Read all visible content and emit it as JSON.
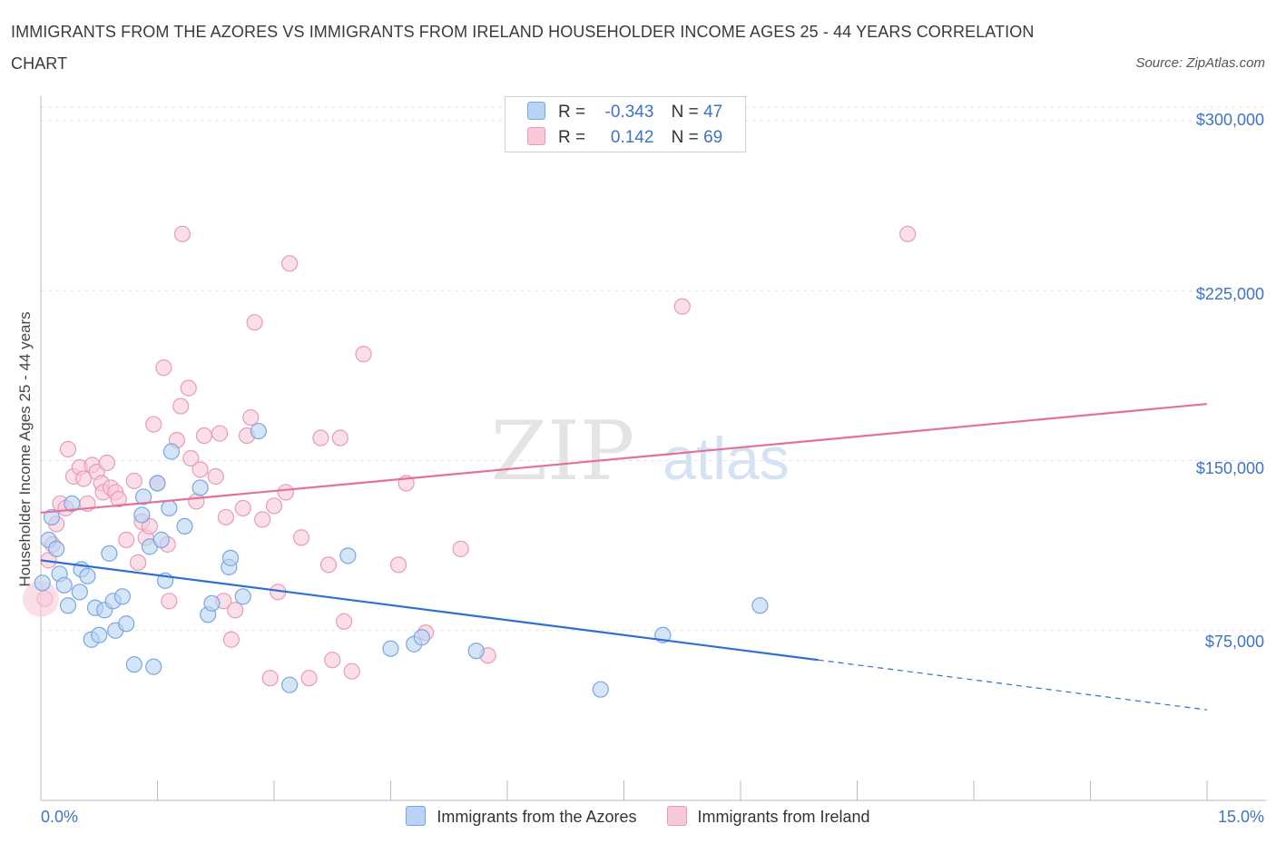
{
  "chart_data": {
    "type": "scatter",
    "title": "IMMIGRANTS FROM THE AZORES VS IMMIGRANTS FROM IRELAND HOUSEHOLDER INCOME AGES 25 - 44 YEARS CORRELATION CHART",
    "source": "Source: ZipAtlas.com",
    "xlabel": "",
    "ylabel": "Householder Income Ages 25 - 44 years",
    "xlim": [
      0,
      15
    ],
    "ylim": [
      0,
      300000
    ],
    "x_tick_labels": [
      "0.0%",
      "15.0%"
    ],
    "y_ticks": [
      75000,
      150000,
      225000,
      300000
    ],
    "y_tick_labels": [
      "$75,000",
      "$150,000",
      "$225,000",
      "$300,000"
    ],
    "grid": true,
    "watermark": "ZIPatlas",
    "legend": {
      "azores": {
        "r_label": "R =",
        "r_value": "-0.343",
        "n_label": "N =",
        "n_value": "47"
      },
      "ireland": {
        "r_label": "R =",
        "r_value": "0.142",
        "n_label": "N =",
        "n_value": "69"
      }
    },
    "colors": {
      "azores_fill": "#b9d3f4",
      "azores_stroke": "#7aa6e0",
      "azores_line": "#2f6fd1",
      "ireland_fill": "#f8c9d8",
      "ireland_stroke": "#ea9ab6",
      "ireland_line": "#e2729b",
      "axis_text": "#3f73c5"
    },
    "series": [
      {
        "name": "Immigrants from the Azores",
        "trend": {
          "x": [
            0,
            10.0
          ],
          "y": [
            106000,
            62000
          ],
          "dashed_to": [
            15,
            40000
          ]
        },
        "points": [
          [
            0.02,
            96000
          ],
          [
            0.1,
            115000
          ],
          [
            0.14,
            125000
          ],
          [
            0.2,
            111000
          ],
          [
            0.24,
            100000
          ],
          [
            0.3,
            95000
          ],
          [
            0.35,
            86000
          ],
          [
            0.4,
            131000
          ],
          [
            0.5,
            92000
          ],
          [
            0.52,
            102000
          ],
          [
            0.6,
            99000
          ],
          [
            0.65,
            71000
          ],
          [
            0.7,
            85000
          ],
          [
            0.75,
            73000
          ],
          [
            0.82,
            84000
          ],
          [
            0.88,
            109000
          ],
          [
            0.93,
            88000
          ],
          [
            0.96,
            75000
          ],
          [
            1.05,
            90000
          ],
          [
            1.1,
            78000
          ],
          [
            1.2,
            60000
          ],
          [
            1.3,
            126000
          ],
          [
            1.32,
            134000
          ],
          [
            1.4,
            112000
          ],
          [
            1.45,
            59000
          ],
          [
            1.5,
            140000
          ],
          [
            1.55,
            115000
          ],
          [
            1.6,
            97000
          ],
          [
            1.65,
            129000
          ],
          [
            1.68,
            154000
          ],
          [
            1.85,
            121000
          ],
          [
            2.05,
            138000
          ],
          [
            2.15,
            82000
          ],
          [
            2.2,
            87000
          ],
          [
            2.42,
            103000
          ],
          [
            2.44,
            107000
          ],
          [
            2.6,
            90000
          ],
          [
            2.8,
            163000
          ],
          [
            3.2,
            51000
          ],
          [
            3.95,
            108000
          ],
          [
            4.5,
            67000
          ],
          [
            4.8,
            69000
          ],
          [
            4.9,
            72000
          ],
          [
            5.6,
            66000
          ],
          [
            7.2,
            49000
          ],
          [
            8.0,
            73000
          ],
          [
            9.25,
            86000
          ]
        ]
      },
      {
        "name": "Immigrants from Ireland",
        "trend": {
          "x": [
            0,
            15
          ],
          "y": [
            127000,
            175000
          ]
        },
        "points": [
          [
            0.05,
            89000
          ],
          [
            0.1,
            106000
          ],
          [
            0.15,
            113000
          ],
          [
            0.2,
            122000
          ],
          [
            0.25,
            131000
          ],
          [
            0.32,
            129000
          ],
          [
            0.35,
            155000
          ],
          [
            0.42,
            143000
          ],
          [
            0.5,
            147000
          ],
          [
            0.55,
            142000
          ],
          [
            0.6,
            131000
          ],
          [
            0.66,
            148000
          ],
          [
            0.72,
            145000
          ],
          [
            0.78,
            140000
          ],
          [
            0.8,
            136000
          ],
          [
            0.85,
            149000
          ],
          [
            0.9,
            138000
          ],
          [
            0.96,
            136000
          ],
          [
            1.0,
            133000
          ],
          [
            1.1,
            115000
          ],
          [
            1.2,
            141000
          ],
          [
            1.25,
            105000
          ],
          [
            1.3,
            123000
          ],
          [
            1.35,
            116000
          ],
          [
            1.4,
            121000
          ],
          [
            1.45,
            166000
          ],
          [
            1.5,
            140000
          ],
          [
            1.58,
            191000
          ],
          [
            1.63,
            113000
          ],
          [
            1.65,
            88000
          ],
          [
            1.75,
            159000
          ],
          [
            1.8,
            174000
          ],
          [
            1.82,
            250000
          ],
          [
            1.9,
            182000
          ],
          [
            1.93,
            151000
          ],
          [
            2.0,
            132000
          ],
          [
            2.05,
            146000
          ],
          [
            2.1,
            161000
          ],
          [
            2.25,
            143000
          ],
          [
            2.3,
            162000
          ],
          [
            2.35,
            88000
          ],
          [
            2.38,
            125000
          ],
          [
            2.45,
            71000
          ],
          [
            2.5,
            84000
          ],
          [
            2.6,
            129000
          ],
          [
            2.65,
            161000
          ],
          [
            2.7,
            169000
          ],
          [
            2.75,
            211000
          ],
          [
            2.85,
            124000
          ],
          [
            2.95,
            54000
          ],
          [
            3.0,
            130000
          ],
          [
            3.05,
            92000
          ],
          [
            3.15,
            136000
          ],
          [
            3.2,
            237000
          ],
          [
            3.35,
            116000
          ],
          [
            3.45,
            54000
          ],
          [
            3.6,
            160000
          ],
          [
            3.7,
            104000
          ],
          [
            3.75,
            62000
          ],
          [
            3.85,
            160000
          ],
          [
            3.9,
            79000
          ],
          [
            4.0,
            57000
          ],
          [
            4.15,
            197000
          ],
          [
            4.6,
            104000
          ],
          [
            4.7,
            140000
          ],
          [
            4.95,
            74000
          ],
          [
            5.4,
            111000
          ],
          [
            5.75,
            64000
          ],
          [
            8.25,
            218000
          ],
          [
            11.15,
            250000
          ]
        ]
      }
    ]
  }
}
